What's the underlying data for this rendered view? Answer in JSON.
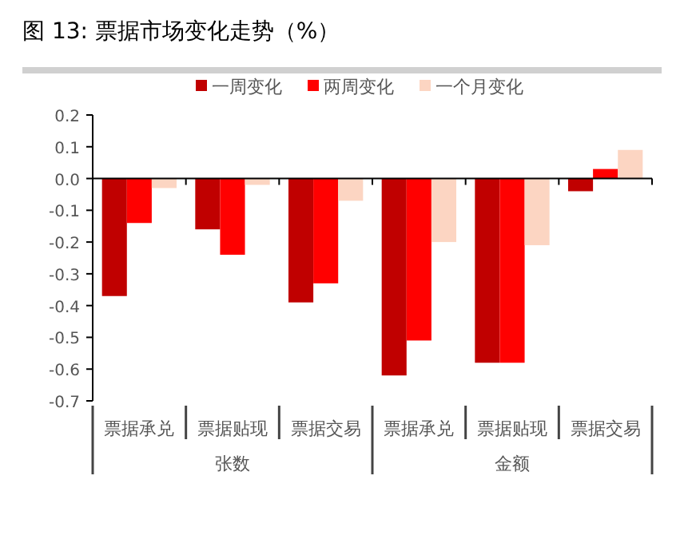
{
  "chart_data": {
    "type": "bar",
    "title": "图 13:    票据市场变化走势（%）",
    "categories": [
      "票据承兑",
      "票据贴现",
      "票据交易",
      "票据承兑",
      "票据贴现",
      "票据交易"
    ],
    "annotations": [
      "张数",
      "金额"
    ],
    "series": [
      {
        "name": "一周变化",
        "color": "#c00000",
        "values": [
          -0.37,
          -0.16,
          -0.39,
          -0.62,
          -0.58,
          -0.04
        ]
      },
      {
        "name": "两周变化",
        "color": "#ff0000",
        "values": [
          -0.14,
          -0.24,
          -0.33,
          -0.51,
          -0.58,
          0.03
        ]
      },
      {
        "name": "一个月变化",
        "color": "#fcd5c2",
        "values": [
          -0.03,
          -0.02,
          -0.07,
          -0.2,
          -0.21,
          0.09
        ]
      }
    ],
    "ylim": [
      -0.7,
      0.2
    ],
    "yticks": [
      0.2,
      0.1,
      {
        "value": 0,
        "label": "0.0"
      },
      -0.1,
      -0.2,
      -0.3,
      -0.4,
      -0.5,
      -0.6,
      -0.7
    ],
    "legend": "top"
  }
}
